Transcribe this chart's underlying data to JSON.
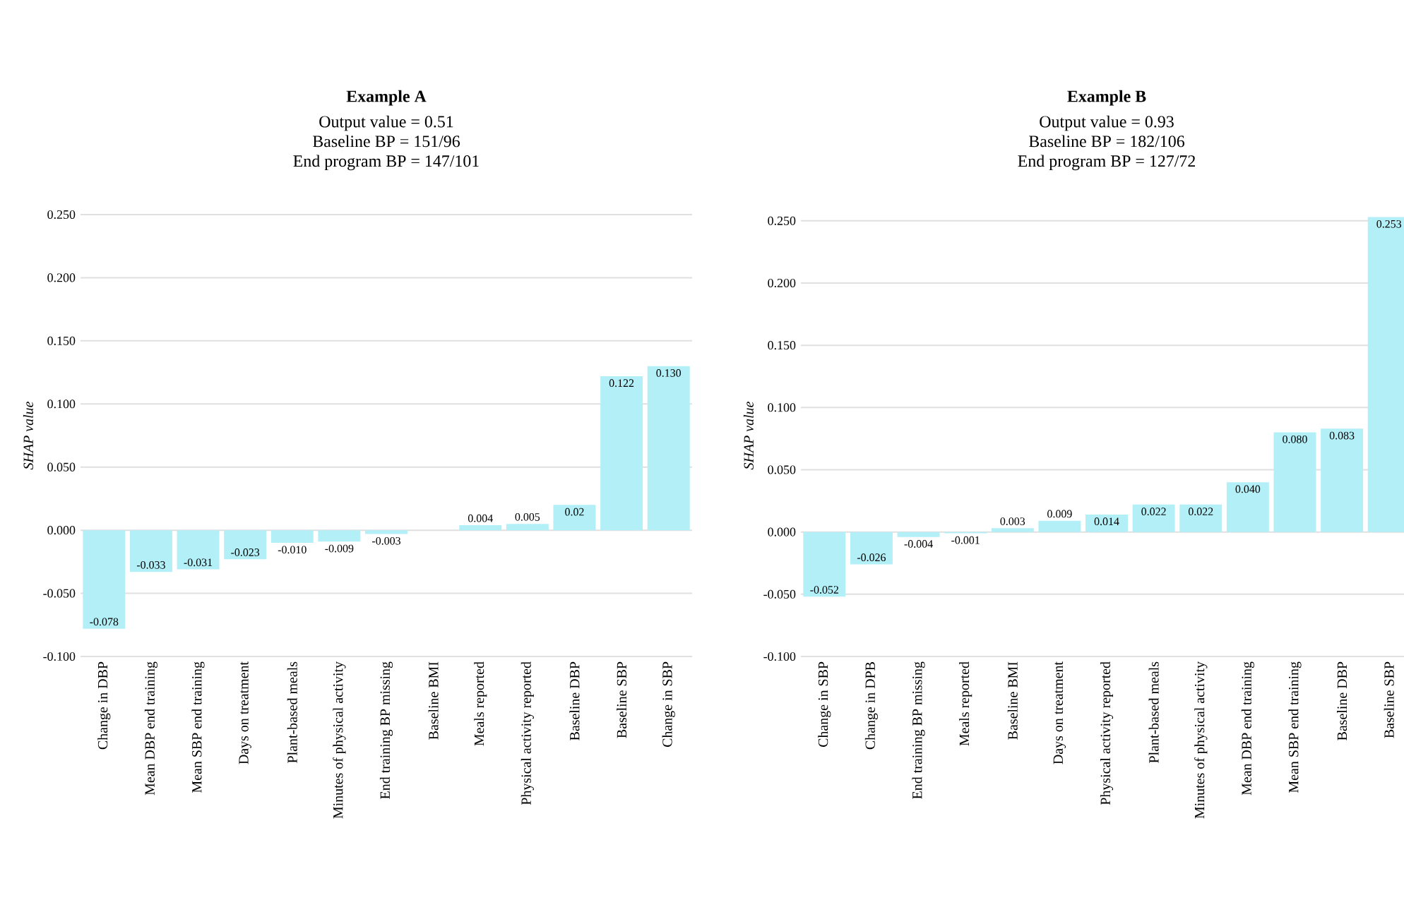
{
  "chart_data": [
    {
      "type": "bar",
      "title": "Example A",
      "subtitle": "Output value = 0.51",
      "annotations": [
        "Baseline BP = 151/96",
        "End program BP = 147/101"
      ],
      "ylabel": "SHAP value",
      "categories": [
        "Change in DBP",
        "Mean DBP end training",
        "Mean SBP end training",
        "Days on treatment",
        "Plant-based meals",
        "Minutes of physical activity",
        "End training BP missing",
        "Baseline BMI",
        "Meals reported",
        "Physical activity reported",
        "Baseline DBP",
        "Baseline SBP",
        "Change in SBP"
      ],
      "values": [
        -0.078,
        -0.033,
        -0.031,
        -0.023,
        -0.01,
        -0.009,
        -0.003,
        0,
        0.004,
        0.005,
        0.02,
        0.122,
        0.13
      ],
      "value_labels": [
        "-0.078",
        "-0.033",
        "-0.031",
        "-0.023",
        "-0.010",
        "-0.009",
        "-0.003",
        null,
        "0.004",
        "0.005",
        "0.02",
        "0.122",
        "0.130"
      ],
      "color": "#b3eff7",
      "ylim": [
        -0.1,
        0.25
      ],
      "yticks": [
        {
          "value": -0.1,
          "label": "-0.100"
        },
        {
          "value": -0.05,
          "label": "-0.050"
        },
        {
          "value": 0,
          "label": "0.000"
        },
        {
          "value": 0.05,
          "label": "0.050"
        },
        {
          "value": 0.1,
          "label": "0.100"
        },
        {
          "value": 0.15,
          "label": "0.150"
        },
        {
          "value": 0.2,
          "label": "0.200"
        },
        {
          "value": 0.25,
          "label": "0.250"
        }
      ],
      "grid": "y"
    },
    {
      "type": "bar",
      "title": "Example B",
      "subtitle": "Output value = 0.93",
      "annotations": [
        "Baseline BP = 182/106",
        "End program BP = 127/72"
      ],
      "ylabel": "SHAP value",
      "categories": [
        "Change in SBP",
        "Change in DPB",
        "End training BP missing",
        "Meals reported",
        "Baseline BMI",
        "Days on treatment",
        "Physical activity reported",
        "Plant-based meals",
        "Minutes of physical activity",
        "Mean DBP end training",
        "Mean SBP end training",
        "Baseline DBP",
        "Baseline SBP"
      ],
      "values": [
        -0.052,
        -0.026,
        -0.004,
        -0.001,
        0.003,
        0.009,
        0.014,
        0.022,
        0.022,
        0.04,
        0.08,
        0.083,
        0.253
      ],
      "value_labels": [
        "-0.052",
        "-0.026",
        "-0.004",
        "-0.001",
        "0.003",
        "0.009",
        "0.014",
        "0.022",
        "0.022",
        "0.040",
        "0.080",
        "0.083",
        "0.253"
      ],
      "color": "#b3eff7",
      "ylim": [
        -0.1,
        0.255
      ],
      "yticks": [
        {
          "value": -0.1,
          "label": "-0.100"
        },
        {
          "value": -0.05,
          "label": "-0.050"
        },
        {
          "value": 0,
          "label": "0.000"
        },
        {
          "value": 0.05,
          "label": "0.050"
        },
        {
          "value": 0.1,
          "label": "0.100"
        },
        {
          "value": 0.15,
          "label": "0.150"
        },
        {
          "value": 0.2,
          "label": "0.200"
        },
        {
          "value": 0.25,
          "label": "0.250"
        }
      ],
      "grid": "y"
    }
  ]
}
